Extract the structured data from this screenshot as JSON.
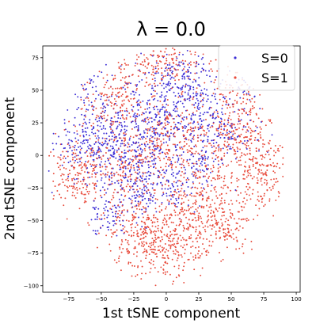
{
  "chart_data": {
    "type": "scatter",
    "title": "λ = 0.0",
    "xlabel": "1st tSNE component",
    "ylabel": "2nd tSNE component",
    "xlim": [
      -95,
      103
    ],
    "ylim": [
      -105,
      84
    ],
    "xticks": [
      -75,
      -50,
      -25,
      0,
      25,
      50,
      75,
      100
    ],
    "yticks": [
      -100,
      -75,
      -50,
      -25,
      0,
      25,
      50,
      75
    ],
    "tick_labels_x": [
      "−75",
      "−50",
      "−25",
      "0",
      "25",
      "50",
      "75",
      "100"
    ],
    "tick_labels_y": [
      "−100",
      "−75",
      "−50",
      "−25",
      "0",
      "25",
      "50",
      "75"
    ],
    "grid": false,
    "legend_position": "top-right",
    "series": [
      {
        "name": "S=0",
        "color": "#3d2fd6",
        "clusters": [
          {
            "cx": -58,
            "cy": 12,
            "sx": 14,
            "sy": 14,
            "n": 220
          },
          {
            "cx": -30,
            "cy": 5,
            "sx": 14,
            "sy": 18,
            "n": 240
          },
          {
            "cx": -5,
            "cy": 30,
            "sx": 14,
            "sy": 16,
            "n": 220
          },
          {
            "cx": 12,
            "cy": 58,
            "sx": 12,
            "sy": 12,
            "n": 140
          },
          {
            "cx": 30,
            "cy": 30,
            "sx": 12,
            "sy": 14,
            "n": 130
          },
          {
            "cx": -18,
            "cy": -25,
            "sx": 12,
            "sy": 12,
            "n": 120
          },
          {
            "cx": -45,
            "cy": -48,
            "sx": 8,
            "sy": 8,
            "n": 60
          },
          {
            "cx": 5,
            "cy": -22,
            "sx": 10,
            "sy": 10,
            "n": 80
          },
          {
            "cx": 50,
            "cy": 15,
            "sx": 10,
            "sy": 12,
            "n": 70
          },
          {
            "cx": 60,
            "cy": 55,
            "sx": 8,
            "sy": 8,
            "n": 40
          },
          {
            "cx": -60,
            "cy": 55,
            "sx": 10,
            "sy": 10,
            "n": 70
          },
          {
            "cx": 25,
            "cy": -5,
            "sx": 10,
            "sy": 10,
            "n": 70
          }
        ]
      },
      {
        "name": "S=1",
        "color": "#e84c3d",
        "clusters": [
          {
            "cx": 0,
            "cy": -65,
            "sx": 20,
            "sy": 15,
            "n": 360
          },
          {
            "cx": 55,
            "cy": 25,
            "sx": 14,
            "sy": 20,
            "n": 260
          },
          {
            "cx": 72,
            "cy": -10,
            "sx": 12,
            "sy": 16,
            "n": 200
          },
          {
            "cx": 30,
            "cy": -35,
            "sx": 16,
            "sy": 14,
            "n": 220
          },
          {
            "cx": -70,
            "cy": -15,
            "sx": 12,
            "sy": 16,
            "n": 200
          },
          {
            "cx": -40,
            "cy": 45,
            "sx": 14,
            "sy": 14,
            "n": 180
          },
          {
            "cx": 0,
            "cy": 70,
            "sx": 16,
            "sy": 9,
            "n": 160
          },
          {
            "cx": 20,
            "cy": 10,
            "sx": 18,
            "sy": 18,
            "n": 220
          },
          {
            "cx": -35,
            "cy": -15,
            "sx": 14,
            "sy": 14,
            "n": 160
          },
          {
            "cx": -20,
            "cy": -55,
            "sx": 12,
            "sy": 12,
            "n": 130
          },
          {
            "cx": 45,
            "cy": -55,
            "sx": 12,
            "sy": 10,
            "n": 110
          },
          {
            "cx": -10,
            "cy": 10,
            "sx": 14,
            "sy": 14,
            "n": 140
          }
        ]
      }
    ]
  }
}
